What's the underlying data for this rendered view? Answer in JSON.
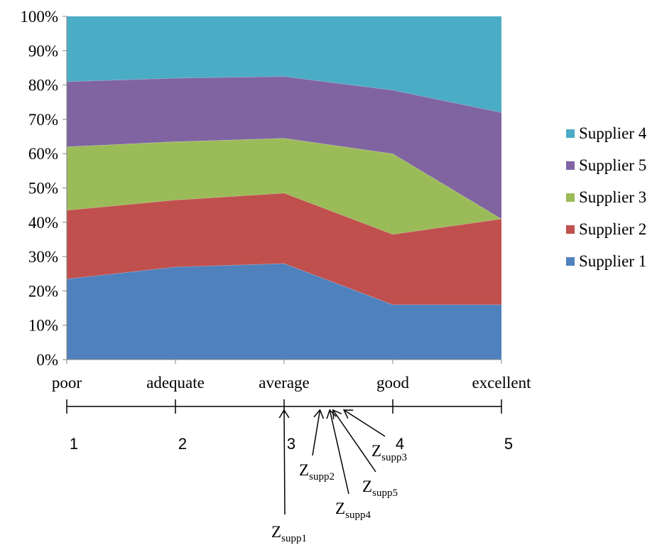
{
  "chart_data": {
    "type": "area",
    "stacked": true,
    "percent": true,
    "categories": [
      "poor",
      "adequate",
      "average",
      "good",
      "excellent"
    ],
    "y_ticks": [
      "0%",
      "10%",
      "20%",
      "30%",
      "40%",
      "50%",
      "60%",
      "70%",
      "80%",
      "90%",
      "100%"
    ],
    "ylim": [
      0,
      100
    ],
    "grid": false,
    "legend_position": "right",
    "legend_order": [
      "Supplier 4",
      "Supplier 5",
      "Supplier 3",
      "Supplier 2",
      "Supplier 1"
    ],
    "series": [
      {
        "name": "Supplier 1",
        "color": "#4F81BD",
        "values": [
          23.5,
          27.0,
          28.0,
          16.0,
          16.0
        ]
      },
      {
        "name": "Supplier 2",
        "color": "#C0504D",
        "values": [
          20.0,
          19.5,
          20.5,
          20.5,
          25.0
        ]
      },
      {
        "name": "Supplier 3",
        "color": "#9BBB59",
        "values": [
          18.5,
          17.0,
          16.0,
          23.5,
          0.0
        ]
      },
      {
        "name": "Supplier 5",
        "color": "#8064A2",
        "values": [
          19.0,
          18.5,
          18.0,
          18.5,
          31.0
        ]
      },
      {
        "name": "Supplier 4",
        "color": "#4BACC6",
        "values": [
          19.0,
          18.0,
          17.5,
          21.5,
          28.0
        ]
      }
    ]
  },
  "scale": {
    "ticks": [
      "1",
      "2",
      "3",
      "4",
      "5"
    ],
    "markers": [
      {
        "base": "Z",
        "sub": "supp1",
        "value": 3.0
      },
      {
        "base": "Z",
        "sub": "supp2",
        "value": 3.33
      },
      {
        "base": "Z",
        "sub": "supp4",
        "value": 3.42
      },
      {
        "base": "Z",
        "sub": "supp5",
        "value": 3.45
      },
      {
        "base": "Z",
        "sub": "supp3",
        "value": 3.55
      }
    ]
  }
}
